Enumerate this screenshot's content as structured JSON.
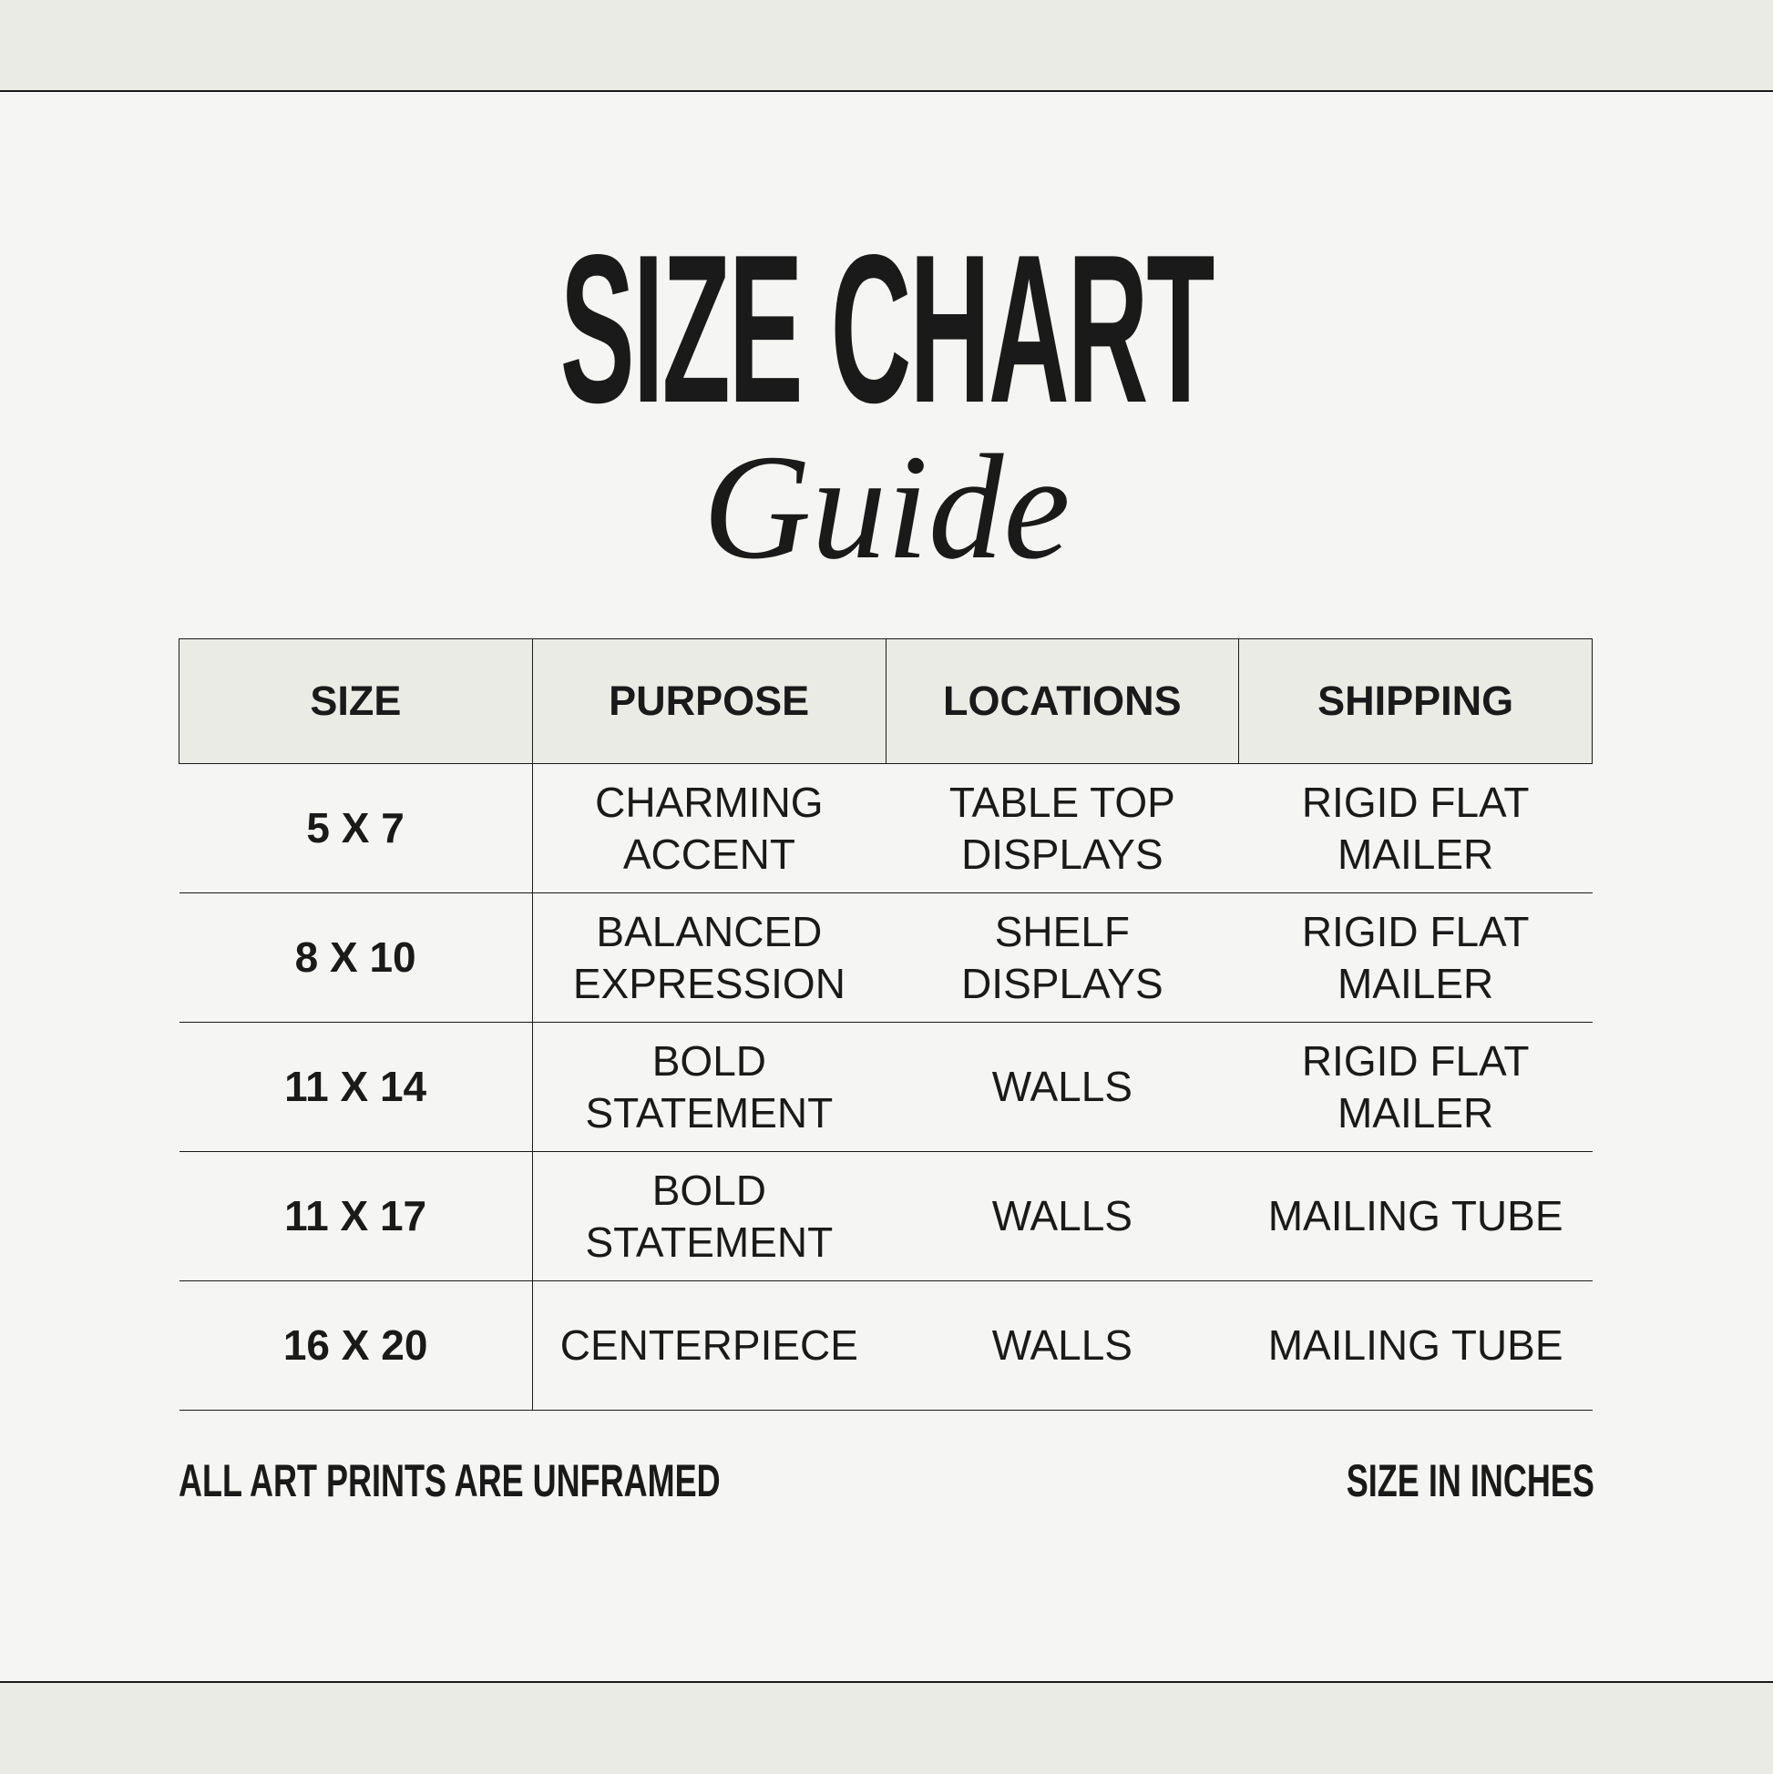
{
  "title": "SIZE CHART",
  "subtitle": "Guide",
  "table": {
    "headers": [
      "SIZE",
      "PURPOSE",
      "LOCATIONS",
      "SHIPPING"
    ],
    "rows": [
      {
        "size": "5 X 7",
        "purpose": "CHARMING ACCENT",
        "locations": "TABLE TOP DISPLAYS",
        "shipping": "RIGID FLAT MAILER"
      },
      {
        "size": "8 X 10",
        "purpose": "BALANCED EXPRESSION",
        "locations": "SHELF DISPLAYS",
        "shipping": "RIGID FLAT MAILER"
      },
      {
        "size": "11 X 14",
        "purpose": "BOLD STATEMENT",
        "locations": "WALLS",
        "shipping": "RIGID FLAT MAILER"
      },
      {
        "size": "11 X 17",
        "purpose": "BOLD STATEMENT",
        "locations": "WALLS",
        "shipping": "MAILING TUBE"
      },
      {
        "size": "16 X 20",
        "purpose": "CENTERPIECE",
        "locations": "WALLS",
        "shipping": "MAILING TUBE"
      }
    ]
  },
  "footer": {
    "left": "ALL ART PRINTS ARE UNFRAMED",
    "right": "SIZE IN INCHES"
  },
  "colors": {
    "background": "#f5f5f3",
    "band": "#ebebe6",
    "text": "#1a1a1a"
  }
}
